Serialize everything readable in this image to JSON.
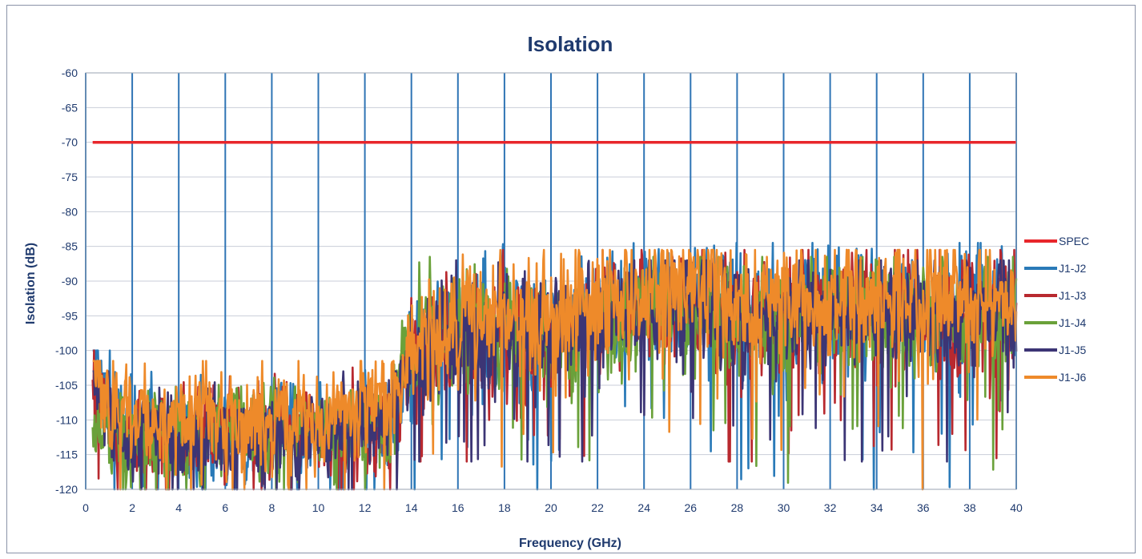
{
  "chart_data": {
    "type": "line",
    "title": "Isolation",
    "xlabel": "Frequency (GHz)",
    "ylabel": "Isolation (dB)",
    "xlim": [
      0,
      40
    ],
    "ylim": [
      -120,
      -60
    ],
    "x_ticks": [
      "0",
      "2",
      "4",
      "6",
      "8",
      "10",
      "12",
      "14",
      "16",
      "18",
      "20",
      "22",
      "24",
      "26",
      "28",
      "30",
      "32",
      "34",
      "36",
      "38",
      "40"
    ],
    "y_ticks": [
      "-60",
      "-65",
      "-70",
      "-75",
      "-80",
      "-85",
      "-90",
      "-95",
      "-100",
      "-105",
      "-110",
      "-115",
      "-120"
    ],
    "grid": "vertical and horizontal",
    "legend_position": "right",
    "x_start": 0.3,
    "x_end": 40,
    "series": [
      {
        "name": "SPEC",
        "color": "#e8262b",
        "x": [
          0.3,
          40
        ],
        "values": [
          -70,
          -70
        ]
      },
      {
        "name": "J1-J2",
        "color": "#2a7ab8",
        "x": [
          0.3,
          1,
          2,
          3,
          4,
          5,
          6,
          7,
          8,
          9,
          10,
          11,
          12,
          13,
          13.5,
          14,
          15,
          16,
          17,
          18,
          19,
          20,
          21,
          22,
          23,
          24,
          25,
          26,
          27,
          28,
          29,
          30,
          31,
          32,
          33,
          34,
          35,
          36,
          37,
          38,
          39,
          40
        ],
        "values": [
          -95,
          -110,
          -111,
          -112,
          -112,
          -112,
          -113,
          -112,
          -110,
          -112,
          -111,
          -112,
          -111,
          -110,
          -104,
          -100,
          -98,
          -97,
          -96,
          -96,
          -97,
          -97,
          -96,
          -95,
          -94,
          -94,
          -93,
          -93,
          -93,
          -93,
          -94,
          -94,
          -94,
          -94,
          -94,
          -94,
          -94,
          -94,
          -94,
          -94,
          -94,
          -94
        ],
        "range": [
          [
            0.3,
            13.5,
            -120,
            -100
          ],
          [
            13.5,
            40,
            -120,
            -84.5
          ]
        ]
      },
      {
        "name": "J1-J3",
        "color": "#b8292f",
        "x": [
          0.3,
          1,
          2,
          3,
          4,
          5,
          6,
          7,
          8,
          9,
          10,
          11,
          12,
          13,
          13.5,
          14,
          15,
          16,
          17,
          18,
          19,
          20,
          21,
          22,
          23,
          24,
          25,
          26,
          27,
          28,
          29,
          30,
          31,
          32,
          33,
          34,
          35,
          36,
          37,
          38,
          39,
          40
        ],
        "values": [
          -102,
          -110,
          -112,
          -112,
          -112,
          -112,
          -112,
          -111,
          -111,
          -112,
          -111,
          -112,
          -111,
          -110,
          -105,
          -100,
          -99,
          -98,
          -97,
          -97,
          -98,
          -97,
          -96,
          -96,
          -95,
          -94,
          -94,
          -94,
          -94,
          -94,
          -95,
          -95,
          -95,
          -95,
          -95,
          -94,
          -94,
          -95,
          -94,
          -94,
          -94,
          -95
        ],
        "range": [
          [
            0.3,
            13.5,
            -120,
            -100
          ],
          [
            13.5,
            40,
            -116,
            -85.5
          ]
        ]
      },
      {
        "name": "J1-J4",
        "color": "#6aa13a",
        "x": [
          0.3,
          1,
          2,
          3,
          4,
          5,
          6,
          7,
          8,
          9,
          10,
          11,
          12,
          13,
          13.5,
          14,
          15,
          16,
          17,
          18,
          19,
          20,
          21,
          22,
          23,
          24,
          25,
          26,
          27,
          28,
          29,
          30,
          31,
          32,
          33,
          34,
          35,
          36,
          37,
          38,
          39,
          40
        ],
        "values": [
          -112,
          -110,
          -112,
          -112,
          -112,
          -113,
          -112,
          -112,
          -111,
          -112,
          -112,
          -112,
          -111,
          -110,
          -104,
          -100,
          -99,
          -98,
          -97,
          -97,
          -98,
          -97,
          -97,
          -96,
          -96,
          -95,
          -95,
          -95,
          -95,
          -95,
          -96,
          -96,
          -96,
          -96,
          -95,
          -95,
          -95,
          -95,
          -95,
          -95,
          -95,
          -96
        ],
        "range": [
          [
            0.3,
            13.5,
            -120,
            -102
          ],
          [
            13.5,
            40,
            -120,
            -86.5
          ]
        ]
      },
      {
        "name": "J1-J5",
        "color": "#3c3575",
        "x": [
          0.3,
          1,
          2,
          3,
          4,
          5,
          6,
          7,
          8,
          9,
          10,
          11,
          12,
          13,
          13.5,
          14,
          15,
          16,
          17,
          18,
          19,
          20,
          21,
          22,
          23,
          24,
          25,
          26,
          27,
          28,
          29,
          30,
          31,
          32,
          33,
          34,
          35,
          36,
          37,
          38,
          39,
          40
        ],
        "values": [
          -102,
          -111,
          -112,
          -112,
          -113,
          -112,
          -113,
          -112,
          -112,
          -112,
          -112,
          -112,
          -111,
          -110,
          -105,
          -101,
          -99,
          -98,
          -97,
          -97,
          -98,
          -97,
          -96,
          -96,
          -95,
          -95,
          -94,
          -94,
          -94,
          -95,
          -95,
          -95,
          -95,
          -95,
          -95,
          -95,
          -95,
          -95,
          -95,
          -94,
          -95,
          -95
        ],
        "range": [
          [
            0.3,
            13.5,
            -120,
            -103
          ],
          [
            13.5,
            40,
            -116,
            -87
          ]
        ]
      },
      {
        "name": "J1-J6",
        "color": "#ee8a2a",
        "x": [
          0.3,
          1,
          2,
          3,
          4,
          5,
          6,
          7,
          8,
          9,
          10,
          11,
          12,
          13,
          13.5,
          14,
          15,
          16,
          17,
          18,
          19,
          20,
          21,
          22,
          23,
          24,
          25,
          26,
          27,
          28,
          29,
          30,
          31,
          32,
          33,
          34,
          35,
          36,
          37,
          38,
          39,
          40
        ],
        "values": [
          -96,
          -109,
          -110,
          -110,
          -109,
          -110,
          -110,
          -110,
          -109,
          -110,
          -109,
          -109,
          -108,
          -107,
          -104,
          -100,
          -98,
          -96,
          -95,
          -95,
          -96,
          -96,
          -94,
          -93,
          -92,
          -91,
          -90,
          -90,
          -91,
          -92,
          -93,
          -93,
          -93,
          -93,
          -93,
          -92,
          -92,
          -93,
          -92,
          -92,
          -92,
          -93
        ],
        "range": [
          [
            0.3,
            13.5,
            -120,
            -101.5
          ],
          [
            13.5,
            40,
            -120,
            -85.5
          ]
        ]
      }
    ]
  }
}
